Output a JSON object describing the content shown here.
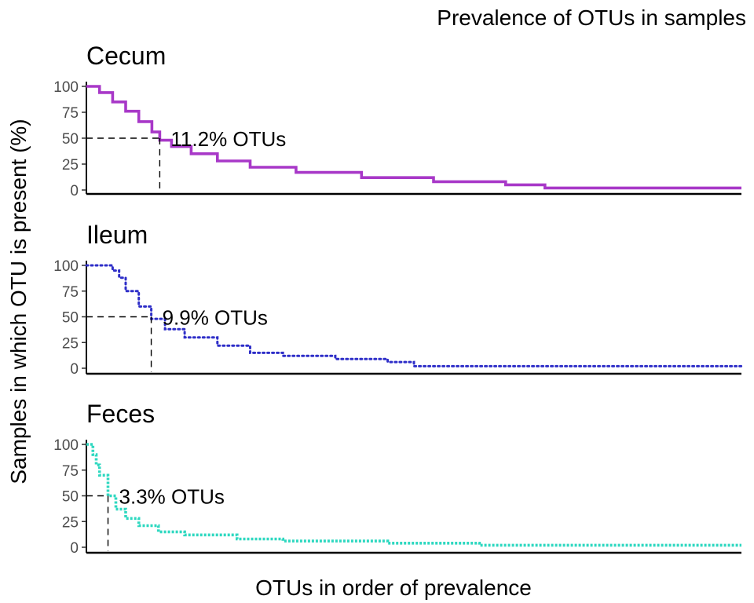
{
  "chart_data": {
    "type": "line",
    "title": "Prevalence of OTUs in samples",
    "xlabel": "OTUs in order of prevalence",
    "ylabel": "Samples in which OTU is present (%)",
    "ylim": [
      0,
      100
    ],
    "yticks": [
      0,
      25,
      50,
      75,
      100
    ],
    "x_unit": "fraction of OTUs ranked by prevalence",
    "grid": false,
    "legend": "none",
    "panels": [
      {
        "name": "Cecum",
        "color": "#A838C8",
        "marker": "dense-line",
        "annotation": "11.2% OTUs",
        "threshold_y": 50,
        "threshold_x": 0.112,
        "x": [
          0,
          0.02,
          0.04,
          0.06,
          0.08,
          0.1,
          0.112,
          0.13,
          0.16,
          0.2,
          0.25,
          0.32,
          0.42,
          0.53,
          0.64,
          0.7,
          0.85,
          1.0
        ],
        "y": [
          100,
          94,
          85,
          76,
          66,
          56,
          48,
          42,
          35,
          28,
          22,
          17,
          12,
          8,
          5,
          2,
          2,
          2
        ]
      },
      {
        "name": "Ileum",
        "color": "#2E2EC8",
        "marker": "dotted",
        "annotation": "9.9% OTUs",
        "threshold_y": 50,
        "threshold_x": 0.099,
        "x": [
          0,
          0.02,
          0.04,
          0.05,
          0.06,
          0.08,
          0.099,
          0.12,
          0.15,
          0.2,
          0.25,
          0.3,
          0.38,
          0.46,
          0.5,
          0.7,
          1.0
        ],
        "y": [
          100,
          100,
          95,
          88,
          75,
          60,
          48,
          38,
          30,
          22,
          15,
          12,
          9,
          6,
          2,
          2,
          2
        ]
      },
      {
        "name": "Feces",
        "color": "#2ED8C0",
        "marker": "dashed",
        "annotation": "3.3% OTUs",
        "threshold_y": 50,
        "threshold_x": 0.033,
        "x": [
          0,
          0.01,
          0.015,
          0.02,
          0.033,
          0.045,
          0.06,
          0.08,
          0.11,
          0.15,
          0.23,
          0.3,
          0.46,
          0.6,
          0.8,
          1.0
        ],
        "y": [
          100,
          90,
          80,
          70,
          50,
          37,
          28,
          21,
          15,
          12,
          8,
          6,
          4,
          2,
          2,
          2
        ]
      }
    ]
  }
}
